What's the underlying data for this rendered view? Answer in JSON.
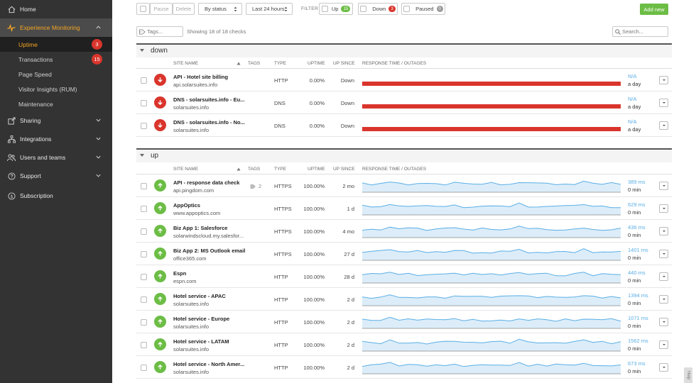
{
  "sidebar": {
    "home": "Home",
    "experience_monitoring": "Experience Monitoring",
    "sub": [
      {
        "label": "Uptime",
        "badge": "3"
      },
      {
        "label": "Transactions",
        "badge": "15"
      },
      {
        "label": "Page Speed"
      },
      {
        "label": "Visitor Insights (RUM)"
      },
      {
        "label": "Maintenance"
      }
    ],
    "sharing": "Sharing",
    "integrations": "Integrations",
    "users": "Users and teams",
    "support": "Support",
    "subscription": "Subscription"
  },
  "toolbar": {
    "pause": "Pause",
    "delete": "Delete",
    "by_status": "By status",
    "last24": "Last 24 hours",
    "filter": "FILTER",
    "up": "Up",
    "up_count": "15",
    "down": "Down",
    "down_count": "3",
    "paused": "Paused",
    "paused_count": "0",
    "add_new": "Add new"
  },
  "tags_placeholder": "Tags...",
  "showing": "Showing 18 of 18 checks",
  "search_placeholder": "Search...",
  "columns": {
    "site_name": "SITE NAME",
    "tags": "TAGS",
    "type": "TYPE",
    "uptime": "UPTIME",
    "up_since": "UP SINCE",
    "response": "RESPONSE TIME / OUTAGES"
  },
  "groups": {
    "down": "down",
    "up": "up"
  },
  "down_rows": [
    {
      "name": "API - Hotel site billing",
      "url": "api.solarsuites.info",
      "type": "HTTP",
      "uptime": "0.00%",
      "since": "Down",
      "resp": "N/A",
      "outage": "a day"
    },
    {
      "name": "DNS - solarsuites.info - Eu...",
      "url": "solarsuites.info",
      "type": "DNS",
      "uptime": "0.00%",
      "since": "Down",
      "resp": "N/A",
      "outage": "a day"
    },
    {
      "name": "DNS - solarsuites.info - No...",
      "url": "solarsuites.info",
      "type": "DNS",
      "uptime": "0.00%",
      "since": "Down",
      "resp": "N/A",
      "outage": "a day"
    }
  ],
  "up_rows": [
    {
      "name": "API - response data check",
      "url": "api.pingdom.com",
      "tags": "2",
      "type": "HTTPS",
      "uptime": "100.00%",
      "since": "2 mo",
      "resp": "389 ms",
      "outage": "0 min"
    },
    {
      "name": "AppOptics",
      "url": "www.appoptics.com",
      "type": "HTTPS",
      "uptime": "100.00%",
      "since": "1 d",
      "resp": "629 ms",
      "outage": "0 min"
    },
    {
      "name": "Biz App 1: Salesforce",
      "url": "solarwindscloud.my.salesfor...",
      "type": "HTTPS",
      "uptime": "100.00%",
      "since": "4 mo",
      "resp": "436 ms",
      "outage": "0 min"
    },
    {
      "name": "Biz App 2: MS Outlook email",
      "url": "office365.com",
      "type": "HTTPS",
      "uptime": "100.00%",
      "since": "27 d",
      "resp": "1401 ms",
      "outage": "0 min"
    },
    {
      "name": "Espn",
      "url": "espn.com",
      "type": "HTTP",
      "uptime": "100.00%",
      "since": "28 d",
      "resp": "440 ms",
      "outage": "0 min"
    },
    {
      "name": "Hotel service - APAC",
      "url": "solarsuites.info",
      "type": "HTTP",
      "uptime": "100.00%",
      "since": "2 d",
      "resp": "1394 ms",
      "outage": "0 min"
    },
    {
      "name": "Hotel service - Europe",
      "url": "solarsuites.info",
      "type": "HTTP",
      "uptime": "100.00%",
      "since": "2 d",
      "resp": "1071 ms",
      "outage": "0 min"
    },
    {
      "name": "Hotel service - LATAM",
      "url": "solarsuites.info",
      "type": "HTTP",
      "uptime": "100.00%",
      "since": "2 d",
      "resp": "1562 ms",
      "outage": "0 min"
    },
    {
      "name": "Hotel service - North Amer...",
      "url": "solarsuites.info",
      "type": "HTTP",
      "uptime": "100.00%",
      "since": "2 d",
      "resp": "673 ms",
      "outage": "0 min"
    }
  ],
  "colors": {
    "accent": "#f5a623",
    "down": "#d9352c",
    "up": "#6cbd45",
    "link": "#5aaee6"
  },
  "feedback": "Help"
}
